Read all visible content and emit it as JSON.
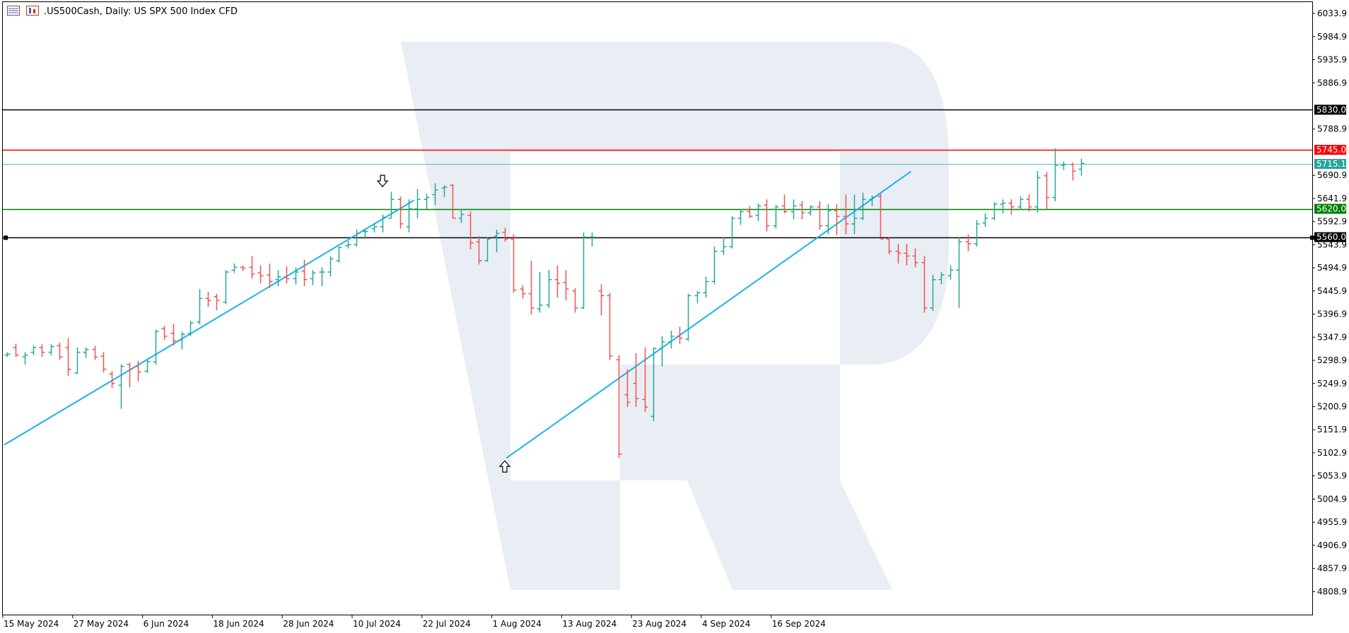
{
  "header": {
    "title": ".US500Cash, Daily:  US SPX 500 Index CFD",
    "icons": [
      "window-list-icon",
      "chart-type-icon"
    ]
  },
  "chart_data": {
    "type": "ohlc",
    "title": ".US500Cash, Daily:  US SPX 500 Index CFD",
    "symbol": ".US500Cash",
    "timeframe": "Daily",
    "instrument": "US SPX 500 Index CFD",
    "ylim": [
      4760,
      6058
    ],
    "grid": false,
    "y_ticks": [
      "6033.9",
      "5984.9",
      "5935.9",
      "5886.9",
      "5788.9",
      "5690.9",
      "5641.9",
      "5592.9",
      "5543.9",
      "5494.9",
      "5445.9",
      "5396.9",
      "5347.9",
      "5298.9",
      "5249.9",
      "5200.9",
      "5151.9",
      "5102.9",
      "5053.9",
      "5004.9",
      "4955.9",
      "4906.9",
      "4857.9",
      "4808.9"
    ],
    "x_tick_labels": [
      {
        "i": 0,
        "label": "15 May 2024"
      },
      {
        "i": 8,
        "label": "27 May 2024"
      },
      {
        "i": 16,
        "label": "6 Jun 2024"
      },
      {
        "i": 24,
        "label": "18 Jun 2024"
      },
      {
        "i": 32,
        "label": "28 Jun 2024"
      },
      {
        "i": 40,
        "label": "10 Jul 2024"
      },
      {
        "i": 48,
        "label": "22 Jul 2024"
      },
      {
        "i": 56,
        "label": "1 Aug 2024"
      },
      {
        "i": 64,
        "label": "13 Aug 2024"
      },
      {
        "i": 72,
        "label": "23 Aug 2024"
      },
      {
        "i": 80,
        "label": "4 Sep 2024"
      },
      {
        "i": 88,
        "label": "16 Sep 2024"
      }
    ],
    "levels": [
      {
        "name": "resistance-5830",
        "value": 5830.0,
        "label": "5830.0",
        "color": "#000000",
        "label_bg": "#000000",
        "label_color": "#ffffff"
      },
      {
        "name": "resistance-5745",
        "value": 5745.0,
        "label": "5745.0",
        "color": "#ff0000",
        "label_bg": "#ff0000",
        "label_color": "#ffffff"
      },
      {
        "name": "current-price",
        "value": 5715.1,
        "label": "5715.1",
        "color": "#5fbdc4",
        "label_bg": "#26a69a",
        "label_color": "#ffffff"
      },
      {
        "name": "support-5620",
        "value": 5620.0,
        "label": "5620.0",
        "color": "#008000",
        "label_bg": "#008000",
        "label_color": "#ffffff"
      },
      {
        "name": "support-5560",
        "value": 5560.0,
        "label": "5560.0",
        "color": "#000000",
        "label_bg": "#000000",
        "label_color": "#ffffff"
      }
    ],
    "trendlines": [
      {
        "name": "trendline-may-jul",
        "color": "#1ab2f0",
        "from": {
          "i": -0.3,
          "v": 5120
        },
        "to": {
          "i": 46.6,
          "v": 5638
        }
      },
      {
        "name": "trendline-aug-sep",
        "color": "#1ab2f0",
        "from": {
          "i": 57.2,
          "v": 5092
        },
        "to": {
          "i": 103.5,
          "v": 5699
        }
      }
    ],
    "arrows": [
      {
        "name": "down-arrow-icon",
        "direction": "down",
        "i": 43,
        "v": 5676
      },
      {
        "name": "up-arrow-icon",
        "direction": "up",
        "i": 57,
        "v": 5077
      }
    ],
    "colors": {
      "bull": "#26a69a",
      "bear": "#ef5350"
    },
    "bars": [
      {
        "o": 5310,
        "h": 5316,
        "l": 5306,
        "c": 5312
      },
      {
        "o": 5326,
        "h": 5334,
        "l": 5306,
        "c": 5310
      },
      {
        "o": 5306,
        "h": 5316,
        "l": 5290,
        "c": 5310
      },
      {
        "o": 5316,
        "h": 5330,
        "l": 5310,
        "c": 5326
      },
      {
        "o": 5326,
        "h": 5333,
        "l": 5306,
        "c": 5316
      },
      {
        "o": 5316,
        "h": 5333,
        "l": 5310,
        "c": 5328
      },
      {
        "o": 5330,
        "h": 5336,
        "l": 5300,
        "c": 5306
      },
      {
        "o": 5326,
        "h": 5346,
        "l": 5266,
        "c": 5280
      },
      {
        "o": 5272,
        "h": 5326,
        "l": 5270,
        "c": 5316
      },
      {
        "o": 5316,
        "h": 5326,
        "l": 5304,
        "c": 5322
      },
      {
        "o": 5322,
        "h": 5330,
        "l": 5300,
        "c": 5306
      },
      {
        "o": 5308,
        "h": 5316,
        "l": 5273,
        "c": 5280
      },
      {
        "o": 5270,
        "h": 5276,
        "l": 5240,
        "c": 5250
      },
      {
        "o": 5246,
        "h": 5290,
        "l": 5196,
        "c": 5286
      },
      {
        "o": 5290,
        "h": 5294,
        "l": 5242,
        "c": 5280
      },
      {
        "o": 5286,
        "h": 5298,
        "l": 5254,
        "c": 5274
      },
      {
        "o": 5276,
        "h": 5300,
        "l": 5272,
        "c": 5296
      },
      {
        "o": 5296,
        "h": 5364,
        "l": 5290,
        "c": 5360
      },
      {
        "o": 5366,
        "h": 5372,
        "l": 5342,
        "c": 5350
      },
      {
        "o": 5356,
        "h": 5376,
        "l": 5330,
        "c": 5340
      },
      {
        "o": 5342,
        "h": 5360,
        "l": 5322,
        "c": 5354
      },
      {
        "o": 5356,
        "h": 5382,
        "l": 5350,
        "c": 5378
      },
      {
        "o": 5380,
        "h": 5450,
        "l": 5375,
        "c": 5430
      },
      {
        "o": 5430,
        "h": 5444,
        "l": 5412,
        "c": 5426
      },
      {
        "o": 5434,
        "h": 5440,
        "l": 5405,
        "c": 5426
      },
      {
        "o": 5422,
        "h": 5490,
        "l": 5418,
        "c": 5486
      },
      {
        "o": 5490,
        "h": 5504,
        "l": 5484,
        "c": 5496
      },
      {
        "o": 5496,
        "h": 5500,
        "l": 5488,
        "c": 5494
      },
      {
        "o": 5496,
        "h": 5520,
        "l": 5472,
        "c": 5482
      },
      {
        "o": 5484,
        "h": 5500,
        "l": 5462,
        "c": 5478
      },
      {
        "o": 5480,
        "h": 5504,
        "l": 5452,
        "c": 5466
      },
      {
        "o": 5470,
        "h": 5490,
        "l": 5456,
        "c": 5476
      },
      {
        "o": 5476,
        "h": 5498,
        "l": 5462,
        "c": 5472
      },
      {
        "o": 5472,
        "h": 5496,
        "l": 5460,
        "c": 5486
      },
      {
        "o": 5488,
        "h": 5512,
        "l": 5456,
        "c": 5470
      },
      {
        "o": 5472,
        "h": 5490,
        "l": 5458,
        "c": 5484
      },
      {
        "o": 5486,
        "h": 5496,
        "l": 5456,
        "c": 5486
      },
      {
        "o": 5486,
        "h": 5520,
        "l": 5476,
        "c": 5514
      },
      {
        "o": 5510,
        "h": 5540,
        "l": 5506,
        "c": 5538
      },
      {
        "o": 5542,
        "h": 5552,
        "l": 5536,
        "c": 5544
      },
      {
        "o": 5544,
        "h": 5576,
        "l": 5540,
        "c": 5568
      },
      {
        "o": 5572,
        "h": 5578,
        "l": 5556,
        "c": 5572
      },
      {
        "o": 5578,
        "h": 5590,
        "l": 5570,
        "c": 5582
      },
      {
        "o": 5582,
        "h": 5608,
        "l": 5570,
        "c": 5602
      },
      {
        "o": 5600,
        "h": 5656,
        "l": 5600,
        "c": 5640
      },
      {
        "o": 5640,
        "h": 5646,
        "l": 5578,
        "c": 5588
      },
      {
        "o": 5582,
        "h": 5640,
        "l": 5570,
        "c": 5620
      },
      {
        "o": 5620,
        "h": 5662,
        "l": 5600,
        "c": 5640
      },
      {
        "o": 5640,
        "h": 5652,
        "l": 5620,
        "c": 5644
      },
      {
        "o": 5650,
        "h": 5674,
        "l": 5628,
        "c": 5660
      },
      {
        "o": 5664,
        "h": 5670,
        "l": 5645,
        "c": 5666
      },
      {
        "o": 5670,
        "h": 5672,
        "l": 5600,
        "c": 5600
      },
      {
        "o": 5600,
        "h": 5620,
        "l": 5590,
        "c": 5608
      },
      {
        "o": 5606,
        "h": 5614,
        "l": 5534,
        "c": 5548
      },
      {
        "o": 5550,
        "h": 5562,
        "l": 5502,
        "c": 5510
      },
      {
        "o": 5510,
        "h": 5560,
        "l": 5508,
        "c": 5556
      },
      {
        "o": 5562,
        "h": 5576,
        "l": 5528,
        "c": 5568
      },
      {
        "o": 5570,
        "h": 5580,
        "l": 5550,
        "c": 5556
      },
      {
        "o": 5556,
        "h": 5566,
        "l": 5442,
        "c": 5448
      },
      {
        "o": 5450,
        "h": 5458,
        "l": 5430,
        "c": 5440
      },
      {
        "o": 5440,
        "h": 5510,
        "l": 5396,
        "c": 5410
      },
      {
        "o": 5408,
        "h": 5486,
        "l": 5400,
        "c": 5416
      },
      {
        "o": 5416,
        "h": 5490,
        "l": 5410,
        "c": 5470
      },
      {
        "o": 5470,
        "h": 5500,
        "l": 5432,
        "c": 5462
      },
      {
        "o": 5464,
        "h": 5490,
        "l": 5426,
        "c": 5450
      },
      {
        "o": 5446,
        "h": 5452,
        "l": 5400,
        "c": 5410
      },
      {
        "o": 5410,
        "h": 5570,
        "l": 5408,
        "c": 5560
      },
      {
        "o": 5560,
        "h": 5570,
        "l": 5540,
        "c": 5560
      },
      {
        "o": 5446,
        "h": 5460,
        "l": 5394,
        "c": 5436
      },
      {
        "o": 5436,
        "h": 5442,
        "l": 5300,
        "c": 5308
      },
      {
        "o": 5300,
        "h": 5310,
        "l": 5092,
        "c": 5100
      },
      {
        "o": 5226,
        "h": 5280,
        "l": 5200,
        "c": 5210
      },
      {
        "o": 5250,
        "h": 5314,
        "l": 5200,
        "c": 5218
      },
      {
        "o": 5216,
        "h": 5326,
        "l": 5190,
        "c": 5200
      },
      {
        "o": 5180,
        "h": 5326,
        "l": 5170,
        "c": 5324
      },
      {
        "o": 5324,
        "h": 5350,
        "l": 5286,
        "c": 5338
      },
      {
        "o": 5338,
        "h": 5362,
        "l": 5324,
        "c": 5350
      },
      {
        "o": 5350,
        "h": 5370,
        "l": 5334,
        "c": 5346
      },
      {
        "o": 5344,
        "h": 5440,
        "l": 5340,
        "c": 5436
      },
      {
        "o": 5436,
        "h": 5446,
        "l": 5420,
        "c": 5442
      },
      {
        "o": 5442,
        "h": 5476,
        "l": 5432,
        "c": 5466
      },
      {
        "o": 5466,
        "h": 5540,
        "l": 5460,
        "c": 5530
      },
      {
        "o": 5530,
        "h": 5560,
        "l": 5522,
        "c": 5540
      },
      {
        "o": 5540,
        "h": 5604,
        "l": 5536,
        "c": 5600
      },
      {
        "o": 5600,
        "h": 5620,
        "l": 5586,
        "c": 5614
      },
      {
        "o": 5614,
        "h": 5626,
        "l": 5600,
        "c": 5604
      },
      {
        "o": 5606,
        "h": 5632,
        "l": 5594,
        "c": 5626
      },
      {
        "o": 5628,
        "h": 5640,
        "l": 5572,
        "c": 5584
      },
      {
        "o": 5584,
        "h": 5628,
        "l": 5578,
        "c": 5624
      },
      {
        "o": 5626,
        "h": 5650,
        "l": 5610,
        "c": 5614
      },
      {
        "o": 5614,
        "h": 5640,
        "l": 5598,
        "c": 5626
      },
      {
        "o": 5628,
        "h": 5636,
        "l": 5598,
        "c": 5612
      },
      {
        "o": 5612,
        "h": 5628,
        "l": 5606,
        "c": 5624
      },
      {
        "o": 5624,
        "h": 5636,
        "l": 5576,
        "c": 5584
      },
      {
        "o": 5584,
        "h": 5630,
        "l": 5566,
        "c": 5616
      },
      {
        "o": 5616,
        "h": 5630,
        "l": 5564,
        "c": 5604
      },
      {
        "o": 5604,
        "h": 5650,
        "l": 5566,
        "c": 5588
      },
      {
        "o": 5588,
        "h": 5650,
        "l": 5566,
        "c": 5600
      },
      {
        "o": 5600,
        "h": 5654,
        "l": 5596,
        "c": 5640
      },
      {
        "o": 5640,
        "h": 5648,
        "l": 5626,
        "c": 5644
      },
      {
        "o": 5646,
        "h": 5652,
        "l": 5560,
        "c": 5556
      },
      {
        "o": 5556,
        "h": 5560,
        "l": 5524,
        "c": 5530
      },
      {
        "o": 5530,
        "h": 5546,
        "l": 5504,
        "c": 5526
      },
      {
        "o": 5526,
        "h": 5546,
        "l": 5500,
        "c": 5520
      },
      {
        "o": 5520,
        "h": 5536,
        "l": 5496,
        "c": 5506
      },
      {
        "o": 5506,
        "h": 5520,
        "l": 5400,
        "c": 5410
      },
      {
        "o": 5410,
        "h": 5480,
        "l": 5404,
        "c": 5470
      },
      {
        "o": 5470,
        "h": 5486,
        "l": 5460,
        "c": 5480
      },
      {
        "o": 5478,
        "h": 5500,
        "l": 5470,
        "c": 5490
      },
      {
        "o": 5490,
        "h": 5560,
        "l": 5410,
        "c": 5550
      },
      {
        "o": 5550,
        "h": 5566,
        "l": 5530,
        "c": 5546
      },
      {
        "o": 5546,
        "h": 5596,
        "l": 5540,
        "c": 5588
      },
      {
        "o": 5590,
        "h": 5610,
        "l": 5582,
        "c": 5600
      },
      {
        "o": 5600,
        "h": 5634,
        "l": 5596,
        "c": 5630
      },
      {
        "o": 5630,
        "h": 5640,
        "l": 5610,
        "c": 5632
      },
      {
        "o": 5632,
        "h": 5640,
        "l": 5608,
        "c": 5624
      },
      {
        "o": 5624,
        "h": 5646,
        "l": 5618,
        "c": 5640
      },
      {
        "o": 5640,
        "h": 5650,
        "l": 5614,
        "c": 5624
      },
      {
        "o": 5624,
        "h": 5700,
        "l": 5612,
        "c": 5686
      },
      {
        "o": 5690,
        "h": 5698,
        "l": 5620,
        "c": 5644
      },
      {
        "o": 5644,
        "h": 5748,
        "l": 5636,
        "c": 5712
      },
      {
        "o": 5712,
        "h": 5720,
        "l": 5702,
        "c": 5714
      },
      {
        "o": 5714,
        "h": 5718,
        "l": 5680,
        "c": 5700
      },
      {
        "o": 5704,
        "h": 5726,
        "l": 5690,
        "c": 5716
      }
    ]
  }
}
